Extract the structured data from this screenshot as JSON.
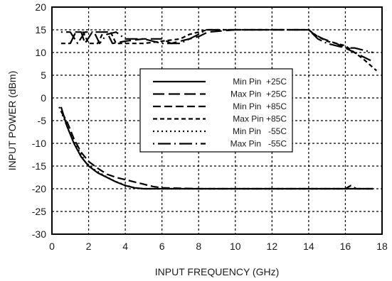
{
  "chart_data": {
    "type": "line",
    "title": "",
    "xlabel": "INPUT FREQUENCY (GHz)",
    "ylabel": "INPUT POWER (dBm)",
    "xlim": [
      0,
      18
    ],
    "ylim": [
      -30,
      20
    ],
    "x_ticks": [
      0,
      2,
      4,
      6,
      8,
      10,
      12,
      14,
      16,
      18
    ],
    "y_ticks": [
      -30,
      -25,
      -20,
      -15,
      -10,
      -5,
      0,
      5,
      10,
      15,
      20
    ],
    "grid": true,
    "legend_position": "center",
    "series": [
      {
        "name": "Min Pin  +25C",
        "dash": "solid",
        "points": [
          [
            0.5,
            -2
          ],
          [
            0.8,
            -6
          ],
          [
            1.2,
            -10
          ],
          [
            1.6,
            -13
          ],
          [
            2,
            -15
          ],
          [
            2.5,
            -16.5
          ],
          [
            3,
            -17.5
          ],
          [
            3.5,
            -18.5
          ],
          [
            4,
            -19.3
          ],
          [
            4.5,
            -19.8
          ],
          [
            5,
            -20
          ],
          [
            6,
            -20
          ],
          [
            8,
            -20
          ],
          [
            10,
            -20
          ],
          [
            12,
            -20
          ],
          [
            14,
            -20
          ],
          [
            16,
            -20
          ],
          [
            17.5,
            -20
          ]
        ]
      },
      {
        "name": "Max Pin  +25C",
        "dash": "long",
        "points": [
          [
            1,
            12
          ],
          [
            1.3,
            14.5
          ],
          [
            1.6,
            14.5
          ],
          [
            1.8,
            12
          ],
          [
            2.2,
            14.5
          ],
          [
            3,
            14.5
          ],
          [
            3.3,
            12
          ],
          [
            4,
            12.5
          ],
          [
            5,
            13
          ],
          [
            6,
            13
          ],
          [
            6.5,
            12
          ],
          [
            7,
            12.5
          ],
          [
            8,
            13.5
          ],
          [
            8.5,
            14.5
          ],
          [
            10,
            15
          ],
          [
            12,
            15
          ],
          [
            14,
            15
          ],
          [
            14.3,
            14
          ],
          [
            14.8,
            13
          ],
          [
            15.5,
            12
          ],
          [
            16,
            11
          ],
          [
            16.5,
            10
          ],
          [
            17,
            9
          ],
          [
            17.5,
            8
          ]
        ]
      },
      {
        "name": "Min Pin  +85C",
        "dash": "medium",
        "points": [
          [
            0.5,
            -3
          ],
          [
            0.8,
            -5
          ],
          [
            1.2,
            -9
          ],
          [
            1.6,
            -12
          ],
          [
            2,
            -14
          ],
          [
            2.5,
            -15.5
          ],
          [
            3,
            -16.8
          ],
          [
            3.5,
            -17.5
          ],
          [
            4,
            -18
          ],
          [
            4.5,
            -18.5
          ],
          [
            5,
            -19
          ],
          [
            5.5,
            -19.5
          ],
          [
            6,
            -19.8
          ],
          [
            8,
            -20
          ],
          [
            10,
            -20
          ],
          [
            12,
            -20
          ],
          [
            14,
            -20
          ],
          [
            16,
            -20
          ],
          [
            16.3,
            -19.3
          ],
          [
            16.6,
            -20
          ],
          [
            17.5,
            -20
          ]
        ]
      },
      {
        "name": "Max Pin +85C",
        "dash": "short",
        "points": [
          [
            0.5,
            12
          ],
          [
            1,
            12
          ],
          [
            1.3,
            14.5
          ],
          [
            1.7,
            14.5
          ],
          [
            2,
            12
          ],
          [
            2.5,
            12
          ],
          [
            2.8,
            14.5
          ],
          [
            3.2,
            14.5
          ],
          [
            3.5,
            12
          ],
          [
            4,
            12
          ],
          [
            5,
            12
          ],
          [
            6,
            12.5
          ],
          [
            7,
            13
          ],
          [
            7.5,
            14
          ],
          [
            8,
            14.5
          ],
          [
            8.5,
            15
          ],
          [
            10,
            15
          ],
          [
            12,
            15
          ],
          [
            14,
            15
          ],
          [
            14.5,
            13.5
          ],
          [
            15,
            12.5
          ],
          [
            15.5,
            12
          ],
          [
            16,
            11.5
          ],
          [
            16.5,
            10
          ],
          [
            17,
            8.5
          ],
          [
            17.7,
            6
          ]
        ]
      },
      {
        "name": "Min Pin   -55C",
        "dash": "dotted",
        "points": [
          [
            0.4,
            -2
          ],
          [
            0.7,
            -5
          ],
          [
            1,
            -8
          ],
          [
            1.4,
            -11
          ],
          [
            1.8,
            -14
          ],
          [
            2.2,
            -15.5
          ],
          [
            2.8,
            -17
          ],
          [
            3.4,
            -18.3
          ],
          [
            4,
            -19.2
          ],
          [
            4.5,
            -19.8
          ],
          [
            5,
            -20
          ],
          [
            6,
            -20
          ],
          [
            8,
            -20
          ],
          [
            10,
            -20
          ],
          [
            12,
            -20
          ],
          [
            14,
            -20
          ],
          [
            16,
            -20
          ],
          [
            17.5,
            -20
          ]
        ]
      },
      {
        "name": "Max Pin   -55C",
        "dash": "dashdot",
        "points": [
          [
            0.5,
            14.5
          ],
          [
            1,
            14.5
          ],
          [
            1.4,
            12
          ],
          [
            1.8,
            14.5
          ],
          [
            2.3,
            14.5
          ],
          [
            2.6,
            12
          ],
          [
            3,
            14
          ],
          [
            3.5,
            14.5
          ],
          [
            4,
            13
          ],
          [
            5,
            13
          ],
          [
            6,
            12
          ],
          [
            7,
            12
          ],
          [
            7.5,
            13
          ],
          [
            8,
            14
          ],
          [
            8.4,
            15
          ],
          [
            10,
            15
          ],
          [
            12,
            15
          ],
          [
            14,
            15
          ],
          [
            14.5,
            13
          ],
          [
            15,
            12
          ],
          [
            16,
            11
          ],
          [
            16.5,
            11
          ],
          [
            17,
            10.5
          ],
          [
            17.5,
            10
          ]
        ]
      }
    ]
  }
}
